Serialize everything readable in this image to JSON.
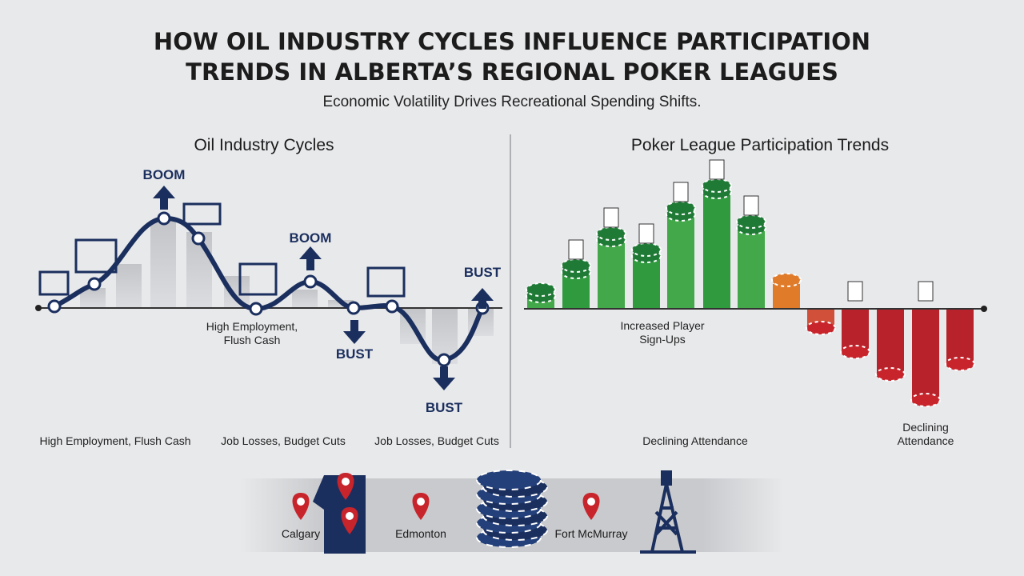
{
  "title_lines": [
    "HOW OIL INDUSTRY CYCLES INFLUENCE PARTICIPATION",
    "TRENDS IN ALBERTA’S REGIONAL POKER LEAGUES"
  ],
  "subtitle": "Economic Volatility Drives Recreational Spending Shifts.",
  "left_panel": {
    "heading": "Oil Industry Cycles",
    "boom_1": "BOOM",
    "boom_2": "BOOM",
    "bust_1": "BUST",
    "bust_2": "BUST",
    "bust_3": "BUST",
    "caption_lines": [
      "High Employment,",
      "Flush Cash"
    ],
    "bottom_labels": [
      "High Employment, Flush Cash",
      "Job Losses, Budget Cuts",
      "Job Losses, Budget Cuts"
    ]
  },
  "right_panel": {
    "heading": "Poker League Participation Trends",
    "increase_lines": [
      "Increased Player",
      "Sign-Ups"
    ],
    "decline_bottom": "Declining Attendance",
    "decline_lines": [
      "Declining",
      "Attendance"
    ]
  },
  "footer": {
    "cities": [
      "Calgary",
      "Edmonton",
      "Fort McMurray"
    ]
  }
}
